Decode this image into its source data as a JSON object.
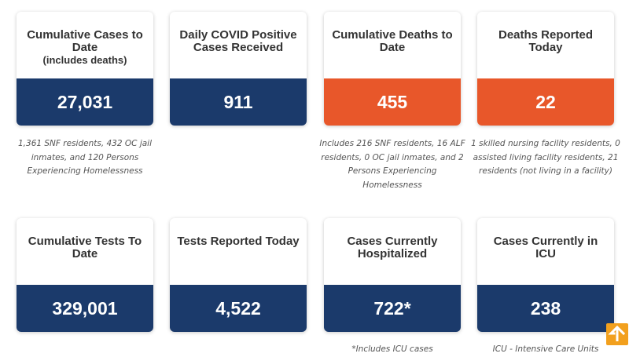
{
  "colors": {
    "navy": "#1b3a6b",
    "orange": "#e8572a",
    "scroll_button": "#f2a01e"
  },
  "cards": [
    {
      "title": "Cumulative Cases to Date",
      "subtitle": "(includes deaths)",
      "value": "27,031",
      "note": "1,361 SNF residents, 432 OC jail inmates, and 120 Persons Experiencing Homelessness"
    },
    {
      "title": "Daily COVID Positive Cases Received",
      "subtitle": "",
      "value": "911",
      "note": ""
    },
    {
      "title": "Cumulative Deaths to Date",
      "subtitle": "",
      "value": "455",
      "note": "Includes 216 SNF residents, 16 ALF residents, 0 OC jail inmates, and 2 Persons Experiencing Homelessness"
    },
    {
      "title": "Deaths Reported Today",
      "subtitle": "",
      "value": "22",
      "note": "1 skilled nursing facility residents, 0 assisted living facility residents, 21 residents (not living in a facility)"
    },
    {
      "title": "Cumulative Tests To Date",
      "subtitle": "",
      "value": "329,001",
      "note": ""
    },
    {
      "title": "Tests Reported Today",
      "subtitle": "",
      "value": "4,522",
      "note": ""
    },
    {
      "title": "Cases Currently Hospitalized",
      "subtitle": "",
      "value": "722*",
      "note": "*Includes ICU cases"
    },
    {
      "title": "Cases Currently in ICU",
      "subtitle": "",
      "value": "238",
      "note": "ICU - Intensive Care Units"
    }
  ],
  "scroll_to_top": {
    "icon": "arrow-up-icon"
  }
}
